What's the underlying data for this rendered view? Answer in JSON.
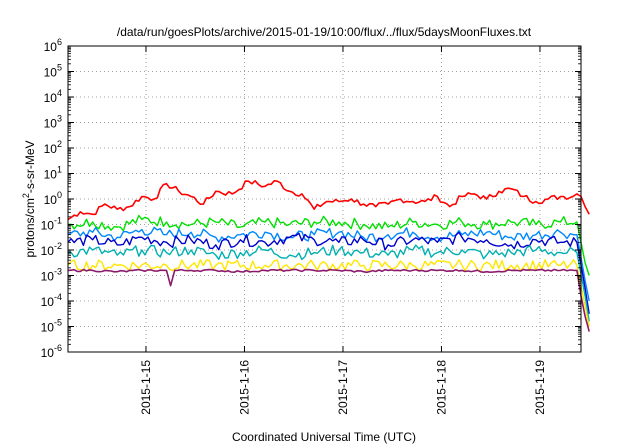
{
  "chart_data": {
    "type": "line",
    "title": "/data/run/goesPlots/archive/2015-01-19/10:00/flux/../flux/5daysMoonFluxes.txt",
    "xlabel": "Coordinated Universal Time (UTC)",
    "ylabel_parts": {
      "pre": "protons/cm",
      "sup": "2",
      "post": "-s-sr-MeV"
    },
    "y_scale": "log",
    "ylim_exponents": [
      -6,
      6
    ],
    "y_tick_labels": [
      {
        "base": "10",
        "exp": "6"
      },
      {
        "base": "10",
        "exp": "5"
      },
      {
        "base": "10",
        "exp": "4"
      },
      {
        "base": "10",
        "exp": "3"
      },
      {
        "base": "10",
        "exp": "2"
      },
      {
        "base": "10",
        "exp": "1"
      },
      {
        "base": "10",
        "exp": "0"
      },
      {
        "base": "10",
        "exp": "-1"
      },
      {
        "base": "10",
        "exp": "-2"
      },
      {
        "base": "10",
        "exp": "-3"
      },
      {
        "base": "10",
        "exp": "-4"
      },
      {
        "base": "10",
        "exp": "-5"
      },
      {
        "base": "10",
        "exp": "-6"
      }
    ],
    "xlim": [
      "2015-01-14T05:00",
      "2015-01-19T10:00"
    ],
    "x_tick_labels": [
      "2015-1-15",
      "2015-1-16",
      "2015-1-17",
      "2015-1-18",
      "2015-1-19"
    ],
    "x_ticks": [
      "2015-01-15T00:00",
      "2015-01-16T00:00",
      "2015-01-17T00:00",
      "2015-01-18T00:00",
      "2015-01-19T00:00"
    ],
    "grid": true,
    "legend": "none",
    "series": [
      {
        "color": "#ff0000",
        "x_hours": [
          0,
          3,
          6,
          9,
          12,
          15,
          18,
          21,
          24,
          27,
          30,
          33,
          36,
          40,
          44,
          48,
          51,
          54,
          57,
          60,
          63,
          66,
          69,
          72,
          75,
          78,
          81,
          84,
          87,
          90,
          93,
          96,
          99,
          102,
          105,
          108,
          111,
          114,
          117,
          120,
          123,
          124,
          125,
          126,
          127
        ],
        "log10": [
          -0.8,
          -0.5,
          -0.6,
          -0.2,
          -0.4,
          -0.3,
          0.1,
          0.0,
          0.6,
          0.3,
          0.1,
          -0.2,
          0.3,
          0.2,
          0.7,
          0.5,
          0.7,
          0.3,
          0.2,
          -0.4,
          -0.1,
          -0.1,
          0.0,
          -0.2,
          -0.3,
          -0.2,
          0.0,
          -0.1,
          -0.1,
          0.1,
          -0.3,
          0.1,
          0.2,
          0.0,
          0.3,
          0.4,
          0.1,
          -0.1,
          0.0,
          0.1,
          0.1,
          0.2,
          0.1,
          -0.3,
          -0.6
        ]
      },
      {
        "color": "#00e000",
        "x_hours": [
          0,
          6,
          12,
          18,
          24,
          30,
          36,
          42,
          48,
          54,
          60,
          66,
          72,
          78,
          84,
          90,
          96,
          102,
          108,
          114,
          120,
          124,
          126,
          127
        ],
        "log10": [
          -1.0,
          -0.9,
          -1.1,
          -0.8,
          -0.9,
          -1.0,
          -0.9,
          -1.1,
          -0.9,
          -1.0,
          -0.9,
          -0.9,
          -1.0,
          -1.1,
          -0.9,
          -1.0,
          -0.9,
          -1.0,
          -0.9,
          -1.0,
          -0.9,
          -0.9,
          -2.5,
          -3.0
        ]
      },
      {
        "color": "#0088ff",
        "x_hours": [
          0,
          6,
          12,
          18,
          24,
          30,
          36,
          42,
          48,
          54,
          60,
          66,
          72,
          78,
          84,
          90,
          96,
          102,
          108,
          114,
          120,
          124,
          126,
          127
        ],
        "log10": [
          -1.4,
          -1.3,
          -1.5,
          -1.2,
          -1.4,
          -1.3,
          -1.5,
          -1.4,
          -1.3,
          -1.5,
          -1.4,
          -1.3,
          -1.5,
          -1.4,
          -1.3,
          -1.5,
          -1.4,
          -1.3,
          -1.5,
          -1.4,
          -1.3,
          -1.4,
          -3.2,
          -4.0
        ]
      },
      {
        "color": "#0000cc",
        "x_hours": [
          0,
          6,
          12,
          18,
          24,
          30,
          36,
          42,
          48,
          54,
          60,
          66,
          72,
          78,
          84,
          90,
          96,
          102,
          108,
          114,
          120,
          124,
          126,
          127
        ],
        "log10": [
          -1.7,
          -1.6,
          -1.8,
          -1.5,
          -1.7,
          -1.6,
          -1.8,
          -1.6,
          -1.7,
          -1.5,
          -1.6,
          -1.7,
          -1.6,
          -1.8,
          -1.6,
          -1.7,
          -1.5,
          -1.6,
          -1.8,
          -1.6,
          -1.7,
          -1.7,
          -3.5,
          -4.5
        ]
      },
      {
        "color": "#00b0b0",
        "x_hours": [
          0,
          6,
          12,
          18,
          24,
          30,
          36,
          42,
          48,
          54,
          60,
          66,
          72,
          78,
          84,
          90,
          96,
          102,
          108,
          114,
          120,
          124,
          126,
          127
        ],
        "log10": [
          -2.1,
          -2.0,
          -2.2,
          -2.0,
          -2.1,
          -2.0,
          -2.2,
          -2.1,
          -2.0,
          -2.2,
          -2.1,
          -2.0,
          -2.1,
          -2.2,
          -2.0,
          -2.1,
          -2.0,
          -2.2,
          -2.1,
          -2.0,
          -2.1,
          -2.1,
          -3.8,
          -4.8
        ]
      },
      {
        "color": "#ffe600",
        "x_hours": [
          0,
          12,
          24,
          36,
          48,
          60,
          72,
          84,
          96,
          108,
          120,
          124,
          126,
          127
        ],
        "log10": [
          -2.6,
          -2.6,
          -2.6,
          -2.6,
          -2.6,
          -2.6,
          -2.6,
          -2.6,
          -2.6,
          -2.6,
          -2.6,
          -2.6,
          -4.2,
          -5.0
        ]
      },
      {
        "color": "#8b1a6b",
        "x_hours": [
          0,
          6,
          12,
          18,
          24,
          25,
          26,
          30,
          36,
          42,
          48,
          54,
          60,
          66,
          72,
          78,
          84,
          90,
          96,
          102,
          108,
          114,
          120,
          124,
          125,
          126,
          127
        ],
        "log10": [
          -2.8,
          -2.8,
          -2.85,
          -2.8,
          -2.8,
          -3.4,
          -2.8,
          -2.8,
          -2.8,
          -2.85,
          -2.8,
          -2.8,
          -2.8,
          -2.8,
          -2.85,
          -2.8,
          -2.8,
          -2.8,
          -2.8,
          -2.85,
          -2.8,
          -2.8,
          -2.8,
          -2.8,
          -3.8,
          -4.6,
          -5.2
        ]
      }
    ]
  }
}
